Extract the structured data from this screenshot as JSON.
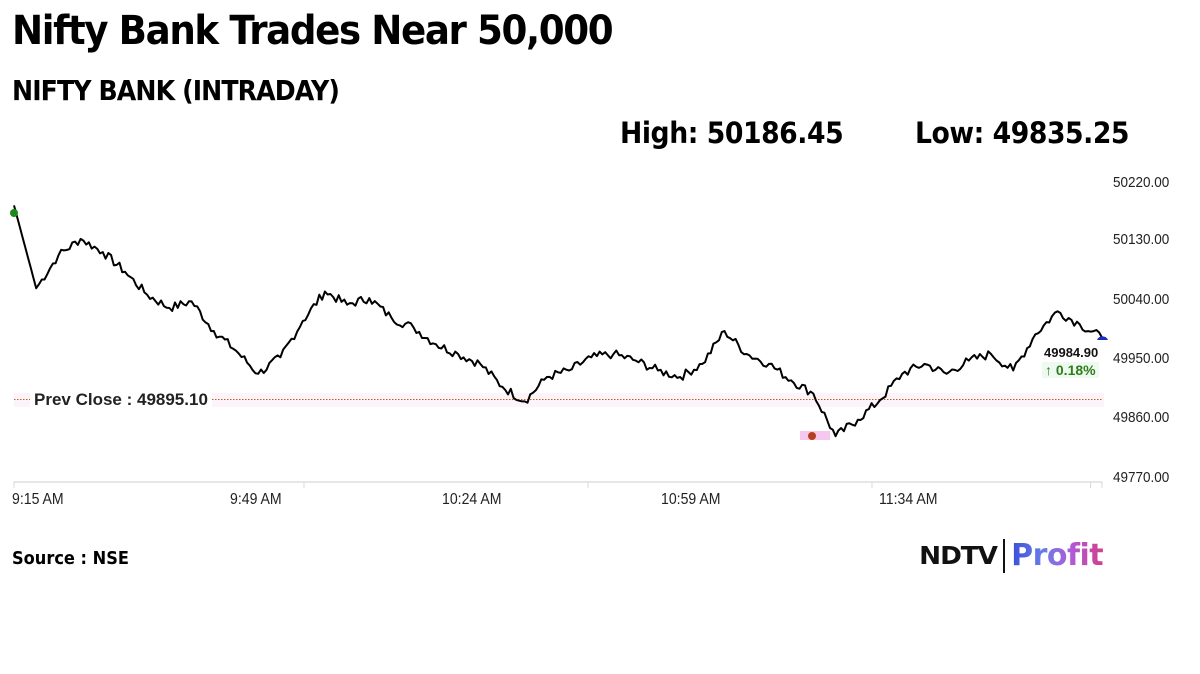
{
  "header": {
    "title": "Nifty Bank Trades Near 50,000",
    "subtitle": "NIFTY BANK (INTRADAY)",
    "high_label": "High: 50186.45",
    "low_label": "Low: 49835.25"
  },
  "chart": {
    "prev_close_label": "Prev Close : 49895.10",
    "last_value": "49984.90",
    "change_pct": "↑ 0.18%",
    "y_ticks": [
      "50220.00",
      "50130.00",
      "50040.00",
      "49950.00",
      "49860.00",
      "49770.00"
    ],
    "x_ticks": [
      "9:15 AM",
      "9:49 AM",
      "10:24 AM",
      "10:59 AM",
      "11:34 AM"
    ],
    "colors": {
      "line": "#000000",
      "prev_close_line": "#b5651d",
      "high_marker": "#1a8a1a",
      "low_marker": "#b5401a",
      "last_marker": "#1a2fbf",
      "change_up": "#2e7d1a"
    }
  },
  "footer": {
    "source": "Source : NSE",
    "logo_left": "NDTV",
    "logo_right": "Profit"
  },
  "chart_data": {
    "type": "line",
    "title": "NIFTY BANK (INTRADAY)",
    "xlabel": "",
    "ylabel": "",
    "x_tick_labels": [
      "9:15 AM",
      "9:49 AM",
      "10:24 AM",
      "10:59 AM",
      "11:34 AM"
    ],
    "y_tick_labels": [
      "49770.00",
      "49860.00",
      "49950.00",
      "50040.00",
      "50130.00",
      "50220.00"
    ],
    "ylim": [
      49770,
      50220
    ],
    "grid": false,
    "legend": "none",
    "annotations": {
      "high": 50186.45,
      "low": 49835.25,
      "prev_close": 49895.1,
      "last": 49984.9,
      "change_pct": 0.18
    },
    "series": [
      {
        "name": "NIFTY BANK",
        "x": [
          "9:15",
          "9:16",
          "9:20",
          "9:24",
          "9:28",
          "9:32",
          "9:35",
          "9:38",
          "9:41",
          "9:44",
          "9:47",
          "9:49",
          "9:52",
          "9:55",
          "9:58",
          "10:01",
          "10:04",
          "10:07",
          "10:10",
          "10:13",
          "10:16",
          "10:19",
          "10:22",
          "10:24",
          "10:27",
          "10:31",
          "10:35",
          "10:39",
          "10:43",
          "10:47",
          "10:51",
          "10:55",
          "10:59",
          "11:02",
          "11:06",
          "11:09",
          "11:12",
          "11:15",
          "11:18",
          "11:21",
          "11:24",
          "11:27",
          "11:30",
          "11:34",
          "11:38",
          "11:42",
          "11:46",
          "11:50",
          "11:54",
          "11:57"
        ],
        "values": [
          50186,
          50060,
          50110,
          50135,
          50115,
          50085,
          50050,
          50030,
          50040,
          49995,
          49965,
          49930,
          49955,
          50010,
          50055,
          50035,
          50045,
          50015,
          50000,
          49975,
          49960,
          49945,
          49910,
          49888,
          49925,
          49935,
          49955,
          49960,
          49950,
          49935,
          49925,
          49945,
          49995,
          49960,
          49945,
          49920,
          49900,
          49835,
          49860,
          49890,
          49930,
          49945,
          49930,
          49950,
          49960,
          49935,
          49990,
          50025,
          50005,
          49985
        ]
      }
    ]
  }
}
